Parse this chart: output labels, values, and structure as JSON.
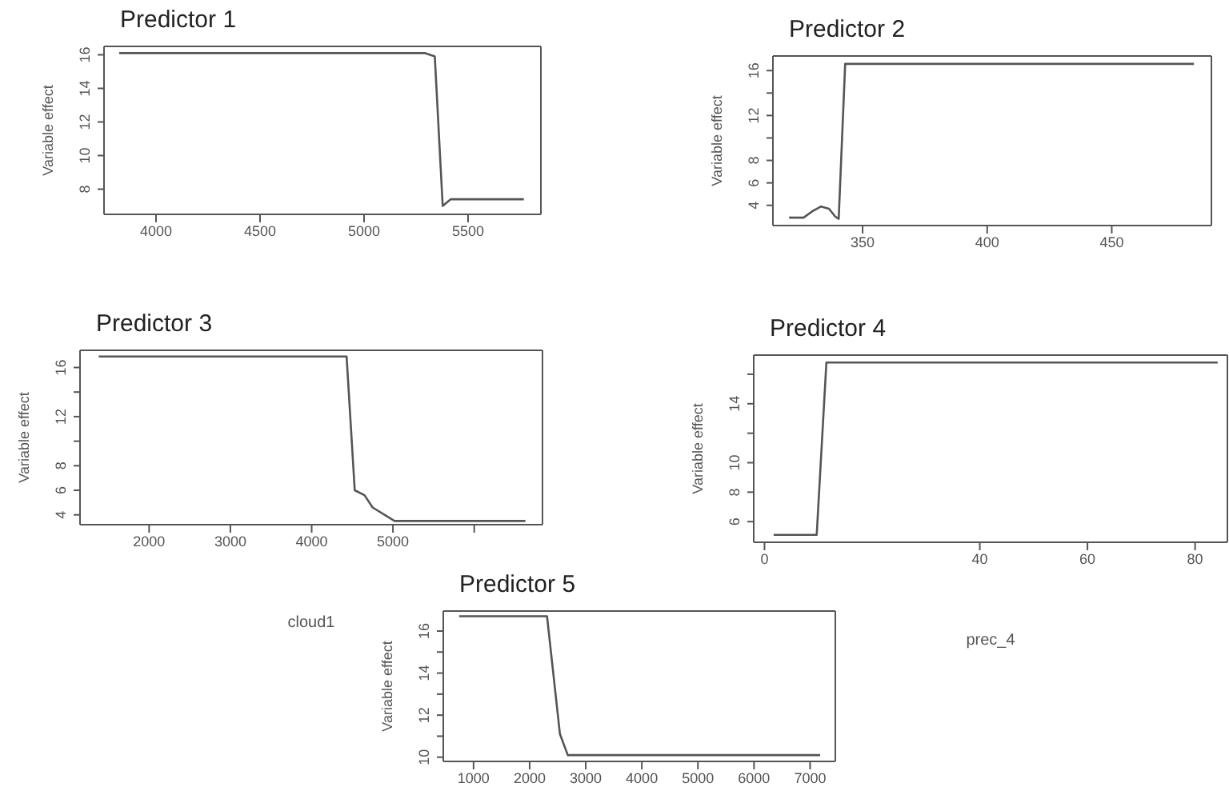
{
  "chart_data": [
    {
      "type": "line",
      "title": "Predictor 1",
      "ylabel": "Variable effect",
      "color": "#555555",
      "x": [
        3823,
        5294,
        5340,
        5378,
        5417,
        5768
      ],
      "values": [
        16.1,
        16.1,
        15.9,
        7.0,
        7.4,
        7.4
      ],
      "xlim": [
        3750,
        5850
      ],
      "ylim": [
        6.5,
        16.5
      ],
      "xticks": [
        4000,
        4500,
        5000,
        5500
      ],
      "yticks": [
        8,
        10,
        12,
        14,
        16
      ]
    },
    {
      "type": "line",
      "title": "Predictor 2",
      "ylabel": "Variable effect",
      "color": "#555555",
      "x": [
        320.5,
        326.3,
        330,
        333.3,
        336.5,
        339,
        340.4,
        343,
        483
      ],
      "values": [
        2.9,
        2.9,
        3.5,
        3.9,
        3.7,
        3.0,
        2.8,
        16.6,
        16.6
      ],
      "xlim": [
        314,
        490
      ],
      "ylim": [
        2.2,
        17.3
      ],
      "xticks": [
        350,
        400,
        450
      ],
      "yticks": [
        4,
        6,
        8,
        {
          "value": 10,
          "label": null
        },
        12,
        {
          "value": 14,
          "label": null
        },
        16
      ]
    },
    {
      "type": "line",
      "title": "Predictor 3",
      "ylabel": "Variable effect",
      "xlabel": "cloud1",
      "color": "#555555",
      "x": [
        1380,
        4430,
        4530,
        4650,
        4750,
        5020,
        6630
      ],
      "values": [
        16.9,
        16.9,
        6.0,
        5.6,
        4.6,
        3.5,
        3.5
      ],
      "xlim": [
        1150,
        6840
      ],
      "ylim": [
        3.2,
        17.4
      ],
      "xticks": [
        2000,
        3000,
        4000,
        5000,
        {
          "value": 6000,
          "label": null
        }
      ],
      "yticks": [
        4,
        6,
        8,
        {
          "value": 10,
          "label": null
        },
        12,
        {
          "value": 14,
          "label": null
        },
        16
      ]
    },
    {
      "type": "line",
      "title": "Predictor 4",
      "ylabel": "Variable effect",
      "xlabel": "prec_4",
      "color": "#555555",
      "x": [
        1.7,
        9.7,
        11.5,
        84.2
      ],
      "values": [
        5.1,
        5.1,
        16.8,
        16.8
      ],
      "xlim": [
        -2,
        86
      ],
      "ylim": [
        4.6,
        17.3
      ],
      "xticks": [
        0,
        40,
        60,
        80
      ],
      "yticks": [
        6,
        8,
        10,
        {
          "value": 12,
          "label": null
        },
        14,
        {
          "value": 16,
          "label": null
        }
      ]
    },
    {
      "type": "line",
      "title": "Predictor 5",
      "ylabel": "Variable effect",
      "color": "#555555",
      "x": [
        744,
        2310,
        2540,
        2680,
        7180
      ],
      "values": [
        16.7,
        16.7,
        11.1,
        10.1,
        10.1
      ],
      "xlim": [
        460,
        7450
      ],
      "ylim": [
        9.8,
        16.95
      ],
      "xticks": [
        1000,
        2000,
        3000,
        4000,
        5000,
        6000,
        7000
      ],
      "yticks": [
        10,
        {
          "value": 11,
          "label": null
        },
        12,
        {
          "value": 13,
          "label": null
        },
        14,
        {
          "value": 15,
          "label": null
        },
        16
      ]
    }
  ]
}
